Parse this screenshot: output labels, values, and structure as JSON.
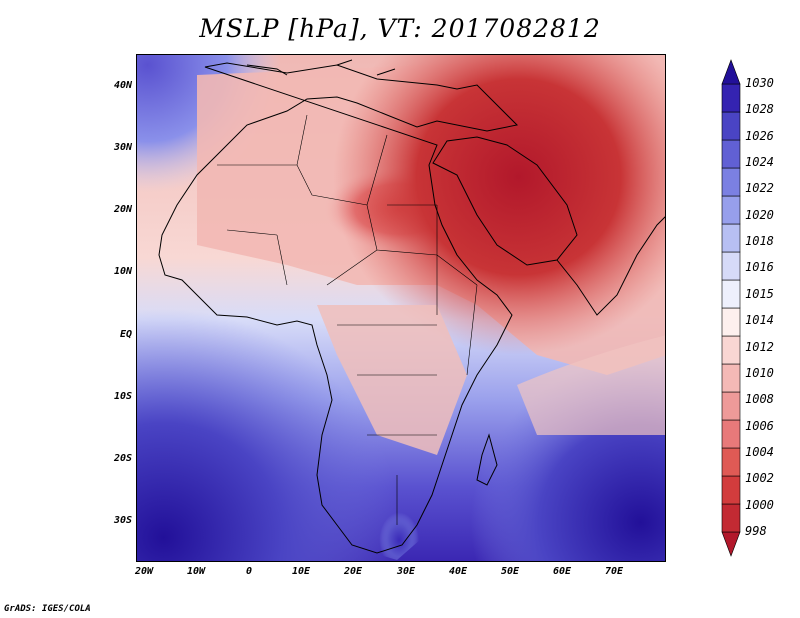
{
  "title": "MSLP [hPa], VT: 2017082812",
  "credit": "GrADS: IGES/COLA",
  "lat_labels": [
    "40N",
    "30N",
    "20N",
    "10N",
    "EQ",
    "10S",
    "20S",
    "30S"
  ],
  "lon_labels": [
    "20W",
    "10W",
    "0",
    "10E",
    "20E",
    "30E",
    "40E",
    "50E",
    "60E",
    "70E"
  ],
  "colorbar": {
    "levels": [
      "998",
      "1000",
      "1002",
      "1004",
      "1006",
      "1008",
      "1010",
      "1012",
      "1014",
      "1015",
      "1016",
      "1018",
      "1020",
      "1022",
      "1024",
      "1026",
      "1028",
      "1030"
    ],
    "colors": [
      "#b2182b",
      "#c32a33",
      "#d23c3d",
      "#df5a55",
      "#e8797a",
      "#ee9a99",
      "#f4b9b6",
      "#f9d6d3",
      "#fdf0ee",
      "#eef0fc",
      "#d6daf8",
      "#b7bff3",
      "#979fec",
      "#7b80e2",
      "#6160d4",
      "#4a44c4",
      "#3423b1",
      "#221099"
    ]
  },
  "map": {
    "ocean_south_color": "#6a6ad8",
    "ocean_deep_color": "#2a1aa2",
    "land_low_color": "#d94a48",
    "arabia_color": "#b82028",
    "coast_color": "#000000"
  }
}
